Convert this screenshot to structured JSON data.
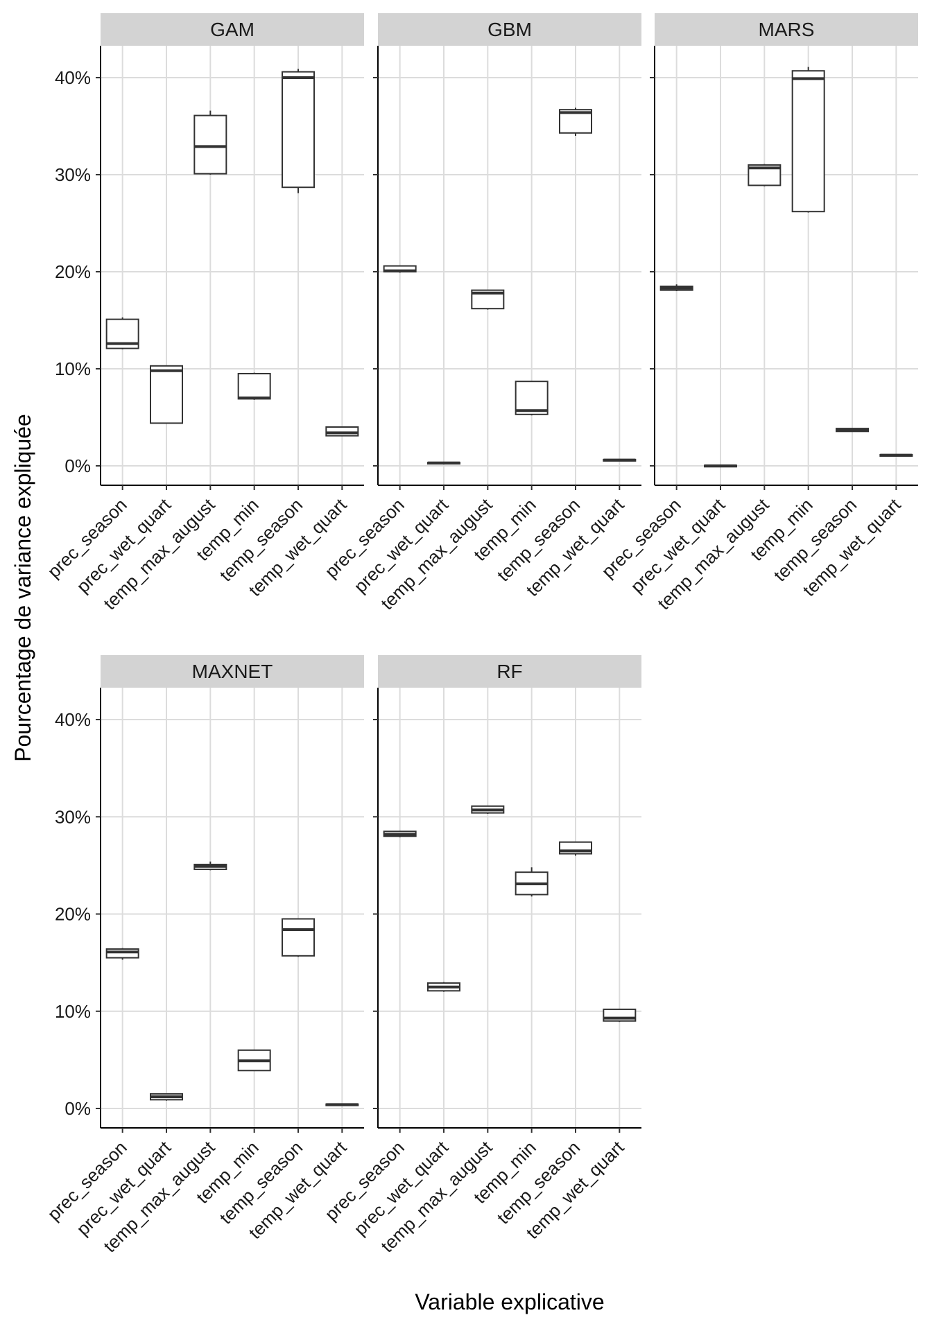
{
  "chart_data": {
    "type": "boxplot",
    "layout": "facet_wrap",
    "xlabel": "Variable explicative",
    "ylabel": "Pourcentage de variance expliquée",
    "ylim": [
      0,
      42
    ],
    "yticks": [
      0,
      10,
      20,
      30,
      40
    ],
    "ytick_labels": [
      "0%",
      "10%",
      "20%",
      "30%",
      "40%"
    ],
    "categories": [
      "prec_season",
      "prec_wet_quart",
      "temp_max_august",
      "temp_min",
      "temp_season",
      "temp_wet_quart"
    ],
    "stats_order": [
      "min",
      "q1",
      "median",
      "q3",
      "max"
    ],
    "grid": true,
    "panels": [
      {
        "name": "GAM",
        "boxes": [
          [
            12.0,
            12.1,
            12.6,
            15.1,
            15.3
          ],
          [
            4.4,
            4.4,
            9.8,
            10.3,
            10.3
          ],
          [
            30.0,
            30.1,
            32.9,
            36.1,
            36.6
          ],
          [
            6.8,
            6.9,
            7.0,
            9.5,
            9.6
          ],
          [
            28.1,
            28.7,
            40.0,
            40.6,
            40.9
          ],
          [
            3.1,
            3.1,
            3.4,
            4.0,
            4.0
          ]
        ]
      },
      {
        "name": "GBM",
        "boxes": [
          [
            19.9,
            20.0,
            20.1,
            20.6,
            20.6
          ],
          [
            0.2,
            0.25,
            0.3,
            0.35,
            0.4
          ],
          [
            16.1,
            16.2,
            17.8,
            18.1,
            18.1
          ],
          [
            5.2,
            5.3,
            5.7,
            8.7,
            8.7
          ],
          [
            34.0,
            34.3,
            36.4,
            36.7,
            36.9
          ],
          [
            0.5,
            0.55,
            0.6,
            0.65,
            0.7
          ]
        ]
      },
      {
        "name": "MARS",
        "boxes": [
          [
            18.0,
            18.1,
            18.3,
            18.5,
            18.7
          ],
          [
            -0.1,
            -0.05,
            0.0,
            0.05,
            0.1
          ],
          [
            28.8,
            28.9,
            30.7,
            31.0,
            31.1
          ],
          [
            26.1,
            26.2,
            39.9,
            40.7,
            41.1
          ],
          [
            3.5,
            3.55,
            3.7,
            3.85,
            3.9
          ],
          [
            1.0,
            1.05,
            1.1,
            1.15,
            1.2
          ]
        ]
      },
      {
        "name": "MAXNET",
        "boxes": [
          [
            15.3,
            15.5,
            16.1,
            16.4,
            16.5
          ],
          [
            0.8,
            0.9,
            1.2,
            1.5,
            1.5
          ],
          [
            24.5,
            24.6,
            24.9,
            25.1,
            25.4
          ],
          [
            3.9,
            3.9,
            4.9,
            6.0,
            6.0
          ],
          [
            15.6,
            15.7,
            18.4,
            19.5,
            19.5
          ],
          [
            0.3,
            0.35,
            0.4,
            0.45,
            0.5
          ]
        ]
      },
      {
        "name": "RF",
        "boxes": [
          [
            27.9,
            28.0,
            28.2,
            28.5,
            28.5
          ],
          [
            12.0,
            12.1,
            12.5,
            12.9,
            13.0
          ],
          [
            30.3,
            30.4,
            30.7,
            31.1,
            31.1
          ],
          [
            21.8,
            22.0,
            23.1,
            24.3,
            24.8
          ],
          [
            26.0,
            26.2,
            26.5,
            27.4,
            27.4
          ],
          [
            8.9,
            9.0,
            9.3,
            10.2,
            10.2
          ]
        ]
      }
    ]
  }
}
